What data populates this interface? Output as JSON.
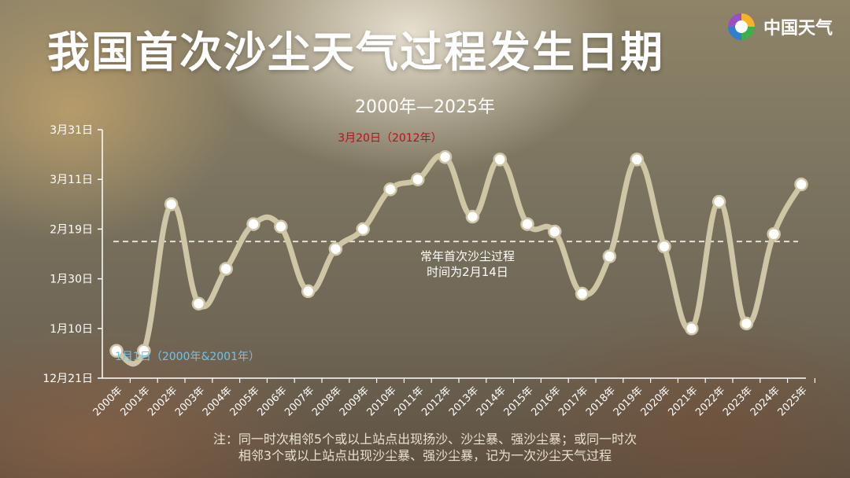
{
  "title": "我国首次沙尘天气过程发生日期",
  "subtitle": "2000年—2025年",
  "brand": {
    "name": "中国天气",
    "icon": "weather-logo-icon"
  },
  "note": {
    "line1": "注：同一时次相邻5个或以上站点出现扬沙、沙尘暴、强沙尘暴；或同一时次",
    "line2": "相邻3个或以上站点出现沙尘暴、强沙尘暴，记为一次沙尘天气过程"
  },
  "chart_data": {
    "type": "line",
    "title": "我国首次沙尘天气过程发生日期",
    "subtitle": "2000年—2025年",
    "categories": [
      "2000年",
      "2001年",
      "2002年",
      "2003年",
      "2004年",
      "2005年",
      "2006年",
      "2007年",
      "2008年",
      "2009年",
      "2010年",
      "2011年",
      "2012年",
      "2013年",
      "2014年",
      "2015年",
      "2016年",
      "2017年",
      "2018年",
      "2019年",
      "2020年",
      "2021年",
      "2022年",
      "2023年",
      "2024年",
      "2025年"
    ],
    "y_unit": "day-of-year offset from 12月21日 (tick labels show dates)",
    "yticks": [
      {
        "value": 0,
        "label": "12月21日"
      },
      {
        "value": 20,
        "label": "1月10日"
      },
      {
        "value": 40,
        "label": "1月30日"
      },
      {
        "value": 60,
        "label": "2月19日"
      },
      {
        "value": 80,
        "label": "3月11日"
      },
      {
        "value": 100,
        "label": "3月31日"
      }
    ],
    "ylim": [
      0,
      100
    ],
    "series": [
      {
        "values": [
          11,
          11,
          70,
          30,
          44,
          62,
          61,
          35,
          52,
          60,
          76,
          80,
          89,
          65,
          88,
          62,
          59,
          34,
          49,
          88,
          53,
          20,
          71,
          22,
          58,
          78
        ]
      }
    ],
    "reference_line": {
      "value": 55,
      "label_line1": "常年首次沙尘过程",
      "label_line2": "时间为2月14日"
    },
    "annotations": [
      {
        "text": "3月20日（2012年）",
        "index": 12,
        "color": "#b5121b"
      },
      {
        "text": "1月1日（2000年&2001年）",
        "index": 0,
        "color": "#6fc3e8"
      }
    ],
    "colors": {
      "line": "#cfc6a6",
      "marker_fill": "#ffffff",
      "marker_stroke": "#cfc6a6",
      "axis": "#ffffff",
      "ref_line": "#ece7da"
    },
    "grid": false,
    "legend": "none"
  }
}
